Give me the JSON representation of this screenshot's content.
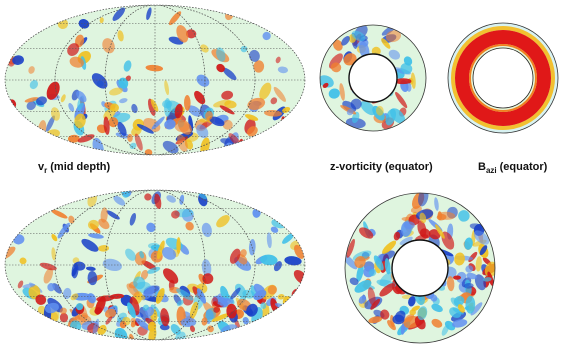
{
  "labels": [
    {
      "main": "v",
      "sub": "r",
      "rest": "(mid depth)"
    },
    {
      "text": "z-vorticity (equator)"
    },
    {
      "main": "B",
      "sub": "azi",
      "rest": "(equator)"
    }
  ]
}
